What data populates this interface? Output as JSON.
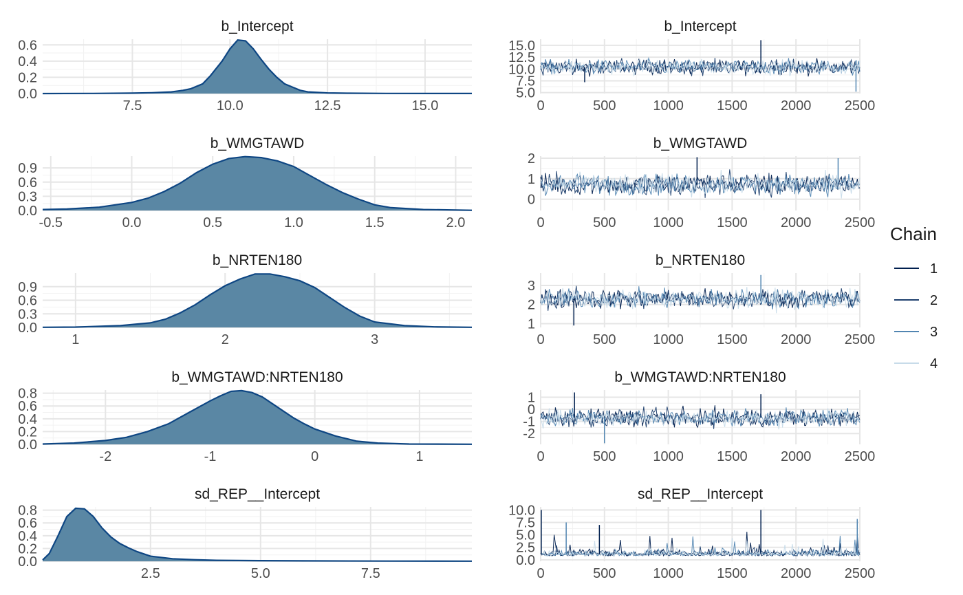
{
  "colors": {
    "density_fill": "#5a87a4",
    "density_line": "#0e4683",
    "grid_major": "#e6e6e6",
    "grid_minor": "#f2f2f2",
    "chain": [
      "#001f4e",
      "#1d3f6e",
      "#5185b1",
      "#c7dbe9"
    ]
  },
  "legend": {
    "title": "Chain",
    "labels": [
      "1",
      "2",
      "3",
      "4"
    ]
  },
  "chart_data": [
    {
      "type": "area",
      "panel": "density",
      "title": "b_Intercept",
      "xlim": [
        5.2,
        16.2
      ],
      "ylim": [
        0,
        0.67
      ],
      "xticks": [
        7.5,
        10.0,
        12.5,
        15.0
      ],
      "xticklabels": [
        "7.5",
        "10.0",
        "12.5",
        "15.0"
      ],
      "yticks": [
        0,
        0.2,
        0.4,
        0.6
      ],
      "yticklabels": [
        "0.0",
        "0.2",
        "0.4",
        "0.6"
      ],
      "x": [
        5.2,
        6.5,
        7.5,
        8.0,
        8.5,
        8.8,
        9.0,
        9.3,
        9.5,
        9.8,
        10.0,
        10.2,
        10.4,
        10.6,
        10.8,
        11.0,
        11.2,
        11.4,
        11.6,
        11.8,
        12.0,
        12.5,
        13.0,
        14.0,
        16.2
      ],
      "y": [
        0,
        0.002,
        0.005,
        0.01,
        0.02,
        0.04,
        0.06,
        0.12,
        0.22,
        0.4,
        0.55,
        0.66,
        0.65,
        0.55,
        0.42,
        0.3,
        0.2,
        0.12,
        0.08,
        0.04,
        0.02,
        0.008,
        0.004,
        0.002,
        0.001
      ]
    },
    {
      "type": "line",
      "panel": "trace",
      "title": "b_Intercept",
      "xlim": [
        0,
        2500
      ],
      "ylim": [
        4.8,
        16.3
      ],
      "xticks": [
        0,
        500,
        1000,
        1500,
        2000,
        2500
      ],
      "xticklabels": [
        "0",
        "500",
        "1000",
        "1500",
        "2000",
        "2500"
      ],
      "yticks": [
        5.0,
        7.5,
        10.0,
        12.5,
        15.0
      ],
      "yticklabels": [
        "5.0",
        "7.5",
        "10.0",
        "12.5",
        "15.0"
      ],
      "center": 10.4,
      "spread": 1.1,
      "outliers": [
        [
          1725,
          16.1
        ],
        [
          2470,
          5.2
        ],
        [
          345,
          7.2
        ]
      ]
    },
    {
      "type": "area",
      "panel": "density",
      "title": "b_WMGTAWD",
      "xlim": [
        -0.55,
        2.1
      ],
      "ylim": [
        0,
        1.15
      ],
      "xticks": [
        -0.5,
        0.0,
        0.5,
        1.0,
        1.5,
        2.0
      ],
      "xticklabels": [
        "-0.5",
        "0.0",
        "0.5",
        "1.0",
        "1.5",
        "2.0"
      ],
      "yticks": [
        0,
        0.3,
        0.6,
        0.9
      ],
      "yticklabels": [
        "0.0",
        "0.3",
        "0.6",
        "0.9"
      ],
      "x": [
        -0.55,
        -0.4,
        -0.2,
        0.0,
        0.1,
        0.2,
        0.3,
        0.4,
        0.5,
        0.6,
        0.7,
        0.8,
        0.9,
        1.0,
        1.1,
        1.2,
        1.3,
        1.4,
        1.5,
        1.6,
        1.8,
        2.1
      ],
      "y": [
        0.02,
        0.03,
        0.07,
        0.17,
        0.26,
        0.4,
        0.58,
        0.8,
        0.98,
        1.1,
        1.14,
        1.12,
        1.05,
        0.93,
        0.74,
        0.55,
        0.38,
        0.24,
        0.12,
        0.06,
        0.02,
        0.005
      ]
    },
    {
      "type": "line",
      "panel": "trace",
      "title": "b_WMGTAWD",
      "xlim": [
        0,
        2500
      ],
      "ylim": [
        -0.55,
        2.1
      ],
      "xticks": [
        0,
        500,
        1000,
        1500,
        2000,
        2500
      ],
      "xticklabels": [
        "0",
        "500",
        "1000",
        "1500",
        "2000",
        "2500"
      ],
      "yticks": [
        0,
        1,
        2
      ],
      "yticklabels": [
        "0",
        "1",
        "2"
      ],
      "center": 0.72,
      "spread": 0.36,
      "outliers": [
        [
          1225,
          2.05
        ],
        [
          2330,
          2.0
        ]
      ]
    },
    {
      "type": "area",
      "panel": "density",
      "title": "b_NRTEN180",
      "xlim": [
        0.78,
        3.65
      ],
      "ylim": [
        0,
        1.2
      ],
      "xticks": [
        1,
        2,
        3
      ],
      "xticklabels": [
        "1",
        "2",
        "3"
      ],
      "yticks": [
        0,
        0.3,
        0.6,
        0.9
      ],
      "yticklabels": [
        "0.0",
        "0.3",
        "0.6",
        "0.9"
      ],
      "x": [
        0.78,
        1.0,
        1.3,
        1.5,
        1.6,
        1.7,
        1.8,
        1.9,
        2.0,
        2.1,
        2.2,
        2.3,
        2.4,
        2.5,
        2.6,
        2.7,
        2.8,
        2.9,
        3.0,
        3.2,
        3.4,
        3.65
      ],
      "y": [
        0.003,
        0.008,
        0.04,
        0.1,
        0.18,
        0.32,
        0.5,
        0.72,
        0.92,
        1.07,
        1.18,
        1.18,
        1.12,
        1.03,
        0.88,
        0.66,
        0.44,
        0.25,
        0.12,
        0.04,
        0.012,
        0.003
      ]
    },
    {
      "type": "line",
      "panel": "trace",
      "title": "b_NRTEN180",
      "xlim": [
        0,
        2500
      ],
      "ylim": [
        0.8,
        3.65
      ],
      "xticks": [
        0,
        500,
        1000,
        1500,
        2000,
        2500
      ],
      "xticklabels": [
        "0",
        "500",
        "1000",
        "1500",
        "2000",
        "2500"
      ],
      "yticks": [
        1,
        2,
        3
      ],
      "yticklabels": [
        "1",
        "2",
        "3"
      ],
      "center": 2.3,
      "spread": 0.36,
      "outliers": [
        [
          260,
          0.9
        ],
        [
          1725,
          3.55
        ]
      ]
    },
    {
      "type": "area",
      "panel": "density",
      "title": "b_WMGTAWD:NRTEN180",
      "xlim": [
        -2.6,
        1.5
      ],
      "ylim": [
        0,
        0.85
      ],
      "xticks": [
        -2,
        -1,
        0,
        1
      ],
      "xticklabels": [
        "-2",
        "-1",
        "0",
        "1"
      ],
      "yticks": [
        0,
        0.2,
        0.4,
        0.6,
        0.8
      ],
      "yticklabels": [
        "0.0",
        "0.2",
        "0.4",
        "0.6",
        "0.8"
      ],
      "x": [
        -2.6,
        -2.3,
        -2.0,
        -1.8,
        -1.6,
        -1.4,
        -1.2,
        -1.0,
        -0.9,
        -0.8,
        -0.7,
        -0.6,
        -0.5,
        -0.4,
        -0.3,
        -0.2,
        -0.1,
        0.0,
        0.2,
        0.4,
        0.6,
        0.9,
        1.5
      ],
      "y": [
        0.005,
        0.02,
        0.06,
        0.11,
        0.2,
        0.32,
        0.5,
        0.68,
        0.76,
        0.83,
        0.84,
        0.81,
        0.74,
        0.63,
        0.52,
        0.41,
        0.32,
        0.24,
        0.13,
        0.05,
        0.02,
        0.005,
        0.002
      ]
    },
    {
      "type": "line",
      "panel": "trace",
      "title": "b_WMGTAWD:NRTEN180",
      "xlim": [
        0,
        2500
      ],
      "ylim": [
        -2.9,
        1.6
      ],
      "xticks": [
        0,
        500,
        1000,
        1500,
        2000,
        2500
      ],
      "xticklabels": [
        "0",
        "500",
        "1000",
        "1500",
        "2000",
        "2500"
      ],
      "yticks": [
        -2,
        -1,
        0,
        1
      ],
      "yticklabels": [
        "-2",
        "-1",
        "0",
        "1"
      ],
      "center": -0.7,
      "spread": 0.5,
      "outliers": [
        [
          265,
          1.4
        ],
        [
          500,
          -2.8
        ],
        [
          1725,
          1.25
        ]
      ]
    },
    {
      "type": "area",
      "panel": "density",
      "title": "sd_REP__Intercept",
      "xlim": [
        0.05,
        9.8
      ],
      "ylim": [
        0,
        0.85
      ],
      "xticks": [
        2.5,
        5.0,
        7.5
      ],
      "xticklabels": [
        "2.5",
        "5.0",
        "7.5"
      ],
      "yticks": [
        0,
        0.2,
        0.4,
        0.6,
        0.8
      ],
      "yticklabels": [
        "0.0",
        "0.2",
        "0.4",
        "0.6",
        "0.8"
      ],
      "x": [
        0.05,
        0.2,
        0.4,
        0.6,
        0.8,
        1.0,
        1.2,
        1.4,
        1.6,
        1.8,
        2.0,
        2.2,
        2.5,
        3.0,
        3.5,
        4.0,
        5.0,
        6.0,
        8.0,
        9.8
      ],
      "y": [
        0.02,
        0.12,
        0.4,
        0.7,
        0.83,
        0.82,
        0.7,
        0.52,
        0.38,
        0.28,
        0.21,
        0.15,
        0.08,
        0.04,
        0.025,
        0.015,
        0.01,
        0.006,
        0.003,
        0.002
      ]
    },
    {
      "type": "line",
      "panel": "trace",
      "title": "sd_REP__Intercept",
      "xlim": [
        0,
        2500
      ],
      "ylim": [
        -0.3,
        10.6
      ],
      "xticks": [
        0,
        500,
        1000,
        1500,
        2000,
        2500
      ],
      "xticklabels": [
        "0",
        "500",
        "1000",
        "1500",
        "2000",
        "2500"
      ],
      "yticks": [
        0,
        2.5,
        5.0,
        7.5,
        10.0
      ],
      "yticklabels": [
        "0.0",
        "2.5",
        "5.0",
        "7.5",
        "10.0"
      ],
      "center": 1.1,
      "spread": 0.9,
      "outliers": [
        [
          1725,
          10.0
        ],
        [
          2480,
          8.2
        ],
        [
          460,
          7.0
        ],
        [
          200,
          7.5
        ],
        [
          5,
          10.0
        ]
      ]
    }
  ]
}
